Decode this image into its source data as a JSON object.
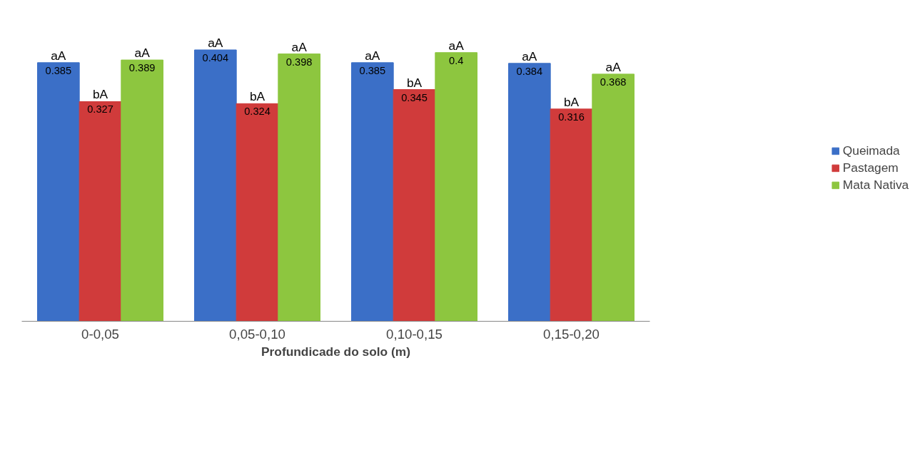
{
  "chart_data": {
    "type": "bar",
    "xlabel": "Profundicade do solo (m)",
    "categories": [
      "0-0,05",
      "0,05-0,10",
      "0,10-0,15",
      "0,15-0,20"
    ],
    "series": [
      {
        "name": "Queimada",
        "color": "#3b6fc7",
        "values": [
          0.385,
          0.404,
          0.385,
          0.384
        ]
      },
      {
        "name": "Pastagem",
        "color": "#d03b3b",
        "values": [
          0.327,
          0.324,
          0.345,
          0.316
        ]
      },
      {
        "name": "Mata Nativa",
        "color": "#8dc63f",
        "values": [
          0.389,
          0.398,
          0.4,
          0.368
        ]
      }
    ],
    "data_labels": true,
    "legend": "right",
    "grid": false,
    "tick_labels": "x",
    "annotations": [
      "aA",
      "bA",
      "aA",
      "aA",
      "bA",
      "aA",
      "aA",
      "bA",
      "aA",
      "aA",
      "bA",
      "aA"
    ]
  }
}
